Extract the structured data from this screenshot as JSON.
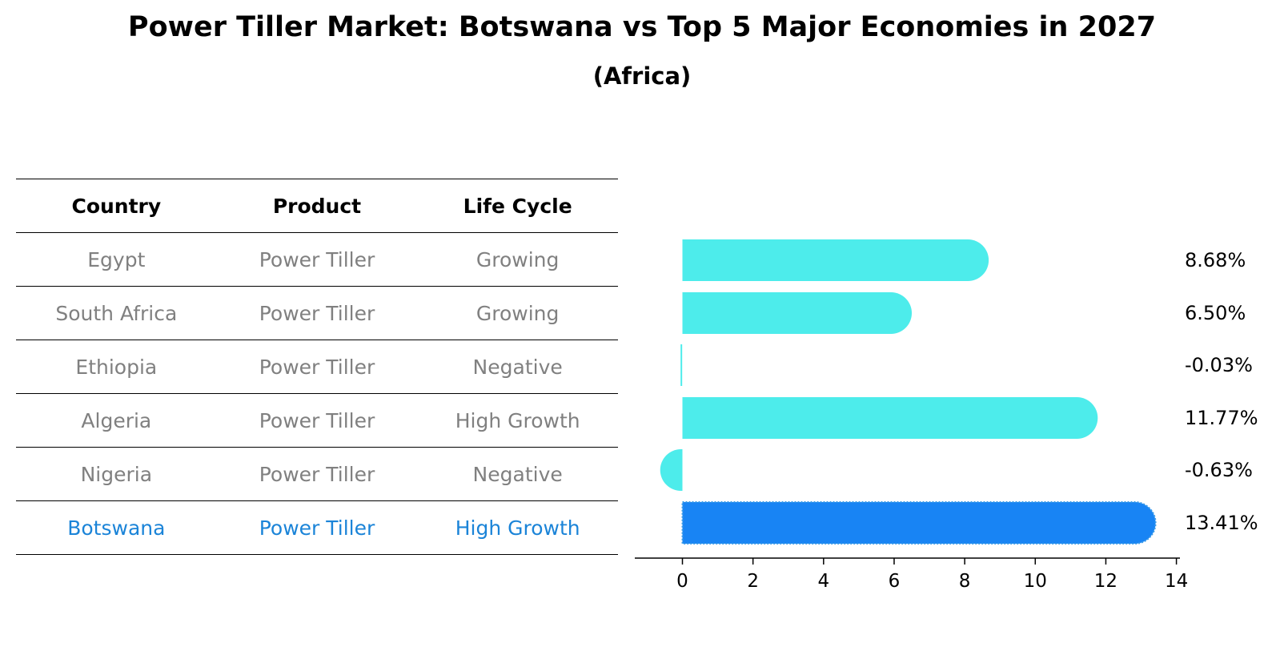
{
  "title": "Power Tiller Market: Botswana vs Top 5 Major Economies in 2027",
  "subtitle": "(Africa)",
  "table": {
    "headers": [
      "Country",
      "Product",
      "Life Cycle"
    ],
    "rows": [
      {
        "country": "Egypt",
        "product": "Power Tiller",
        "life_cycle": "Growing"
      },
      {
        "country": "South Africa",
        "product": "Power Tiller",
        "life_cycle": "Growing"
      },
      {
        "country": "Ethiopia",
        "product": "Power Tiller",
        "life_cycle": "Negative"
      },
      {
        "country": "Algeria",
        "product": "Power Tiller",
        "life_cycle": "High Growth"
      },
      {
        "country": "Nigeria",
        "product": "Power Tiller",
        "life_cycle": "Negative"
      },
      {
        "country": "Botswana",
        "product": "Power Tiller",
        "life_cycle": "High Growth"
      }
    ],
    "highlight_color": "#1b84d8",
    "text_color": "#808080"
  },
  "chart_data": {
    "type": "bar",
    "orientation": "horizontal",
    "categories": [
      "Egypt",
      "South Africa",
      "Ethiopia",
      "Algeria",
      "Nigeria",
      "Botswana"
    ],
    "values": [
      8.68,
      6.5,
      -0.03,
      11.77,
      -0.63,
      13.41
    ],
    "value_labels": [
      "8.68%",
      "6.50%",
      "-0.03%",
      "11.77%",
      "-0.63%",
      "13.41%"
    ],
    "colors": [
      "#4deceb",
      "#4deceb",
      "#4deceb",
      "#4deceb",
      "#4deceb",
      "#1884f4"
    ],
    "highlight": "Botswana",
    "xlim": [
      -1.35,
      14.1
    ],
    "xticks": [
      0,
      2,
      4,
      6,
      8,
      10,
      12,
      14
    ],
    "xlabel": "",
    "ylabel": "",
    "grid": false,
    "legend": "none"
  }
}
